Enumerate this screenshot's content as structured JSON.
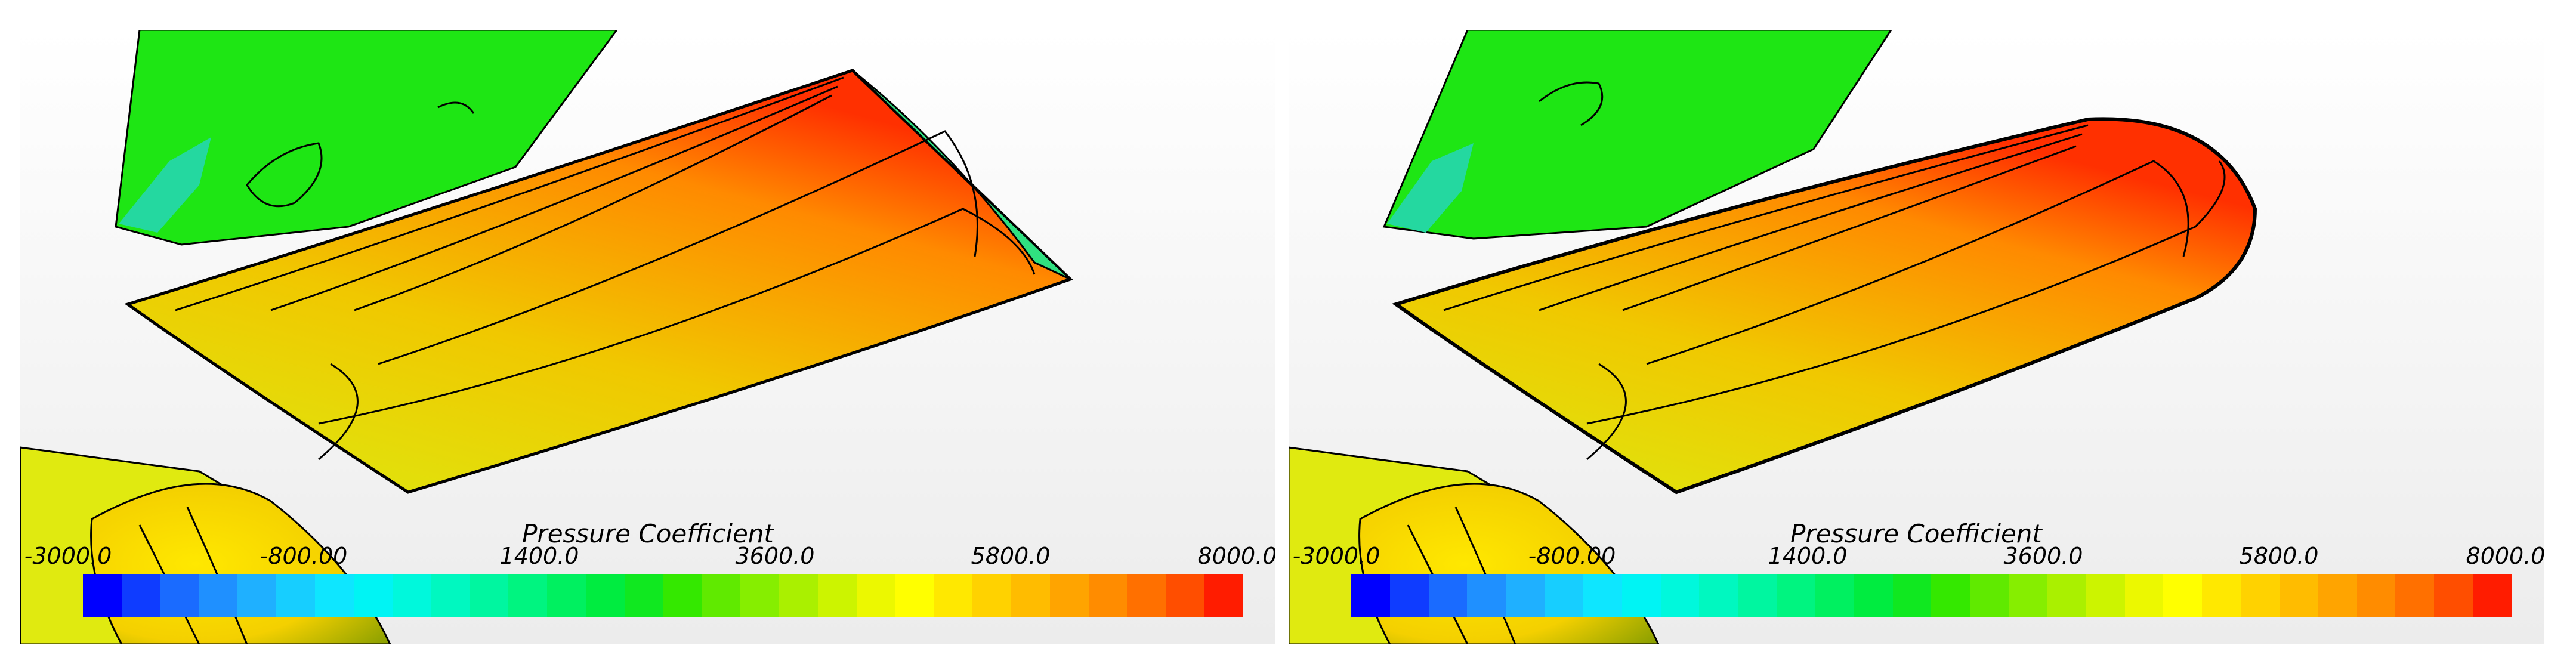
{
  "panels": [
    {
      "id": "left",
      "colorbar": {
        "title": "Pressure Coefficient",
        "ticks": [
          "-3000.0",
          "-800.00",
          "1400.0",
          "3600.0",
          "5800.0",
          "8000.0"
        ]
      }
    },
    {
      "id": "right",
      "colorbar": {
        "title": "Pressure Coefficient",
        "ticks": [
          "-3000.0",
          "-800.00",
          "1400.0",
          "3600.0",
          "5800.0",
          "8000.0"
        ]
      }
    }
  ],
  "colorbar_range": [
    -3000,
    8000
  ],
  "colormap": [
    "#0000ff",
    "#0f3cff",
    "#1a6bff",
    "#1f90ff",
    "#1fb0ff",
    "#17ceff",
    "#0ee6ff",
    "#00f4f4",
    "#00f8dc",
    "#00f8c0",
    "#00f6a0",
    "#00f480",
    "#00f060",
    "#00ec40",
    "#10e820",
    "#34e800",
    "#60ea00",
    "#86ee00",
    "#aaf000",
    "#ccf400",
    "#ecf800",
    "#ffff00",
    "#ffe800",
    "#ffd200",
    "#ffbc00",
    "#ffa400",
    "#ff8c00",
    "#ff7000",
    "#ff4e00",
    "#ff1c00"
  ]
}
